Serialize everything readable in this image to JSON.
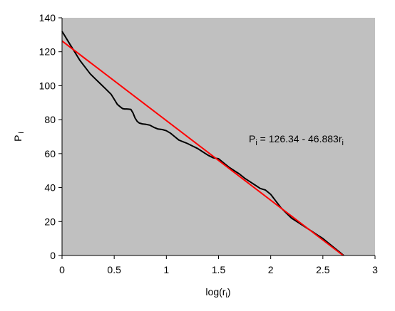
{
  "chart_data": {
    "type": "line",
    "title": "",
    "xlabel": {
      "main": "log(r",
      "sub": "i",
      "close": ")"
    },
    "ylabel": {
      "main": "P",
      "sub": "i"
    },
    "xlim": [
      0,
      3
    ],
    "ylim": [
      0,
      140
    ],
    "xticks": [
      0,
      0.5,
      1,
      1.5,
      2,
      2.5,
      3
    ],
    "xtick_labels": [
      "0",
      "0.5",
      "1",
      "1.5",
      "2",
      "2.5",
      "3"
    ],
    "yticks": [
      0,
      20,
      40,
      60,
      80,
      100,
      120,
      140
    ],
    "ytick_labels": [
      "0",
      "20",
      "40",
      "60",
      "80",
      "100",
      "120",
      "140"
    ],
    "grid": false,
    "legend": "none",
    "plot_background": "#c0c0c0",
    "series": [
      {
        "kind": "data",
        "color": "#000000",
        "x": [
          0,
          0.03,
          0.07,
          0.12,
          0.17,
          0.22,
          0.27,
          0.32,
          0.37,
          0.42,
          0.47,
          0.5,
          0.53,
          0.56,
          0.58,
          0.6,
          0.62,
          0.64,
          0.66,
          0.68,
          0.7,
          0.72,
          0.74,
          0.77,
          0.8,
          0.84,
          0.88,
          0.92,
          0.96,
          1.0,
          1.04,
          1.08,
          1.12,
          1.14,
          1.16,
          1.2,
          1.25,
          1.3,
          1.35,
          1.4,
          1.45,
          1.5,
          1.55,
          1.6,
          1.65,
          1.7,
          1.75,
          1.8,
          1.85,
          1.9,
          1.95,
          2.0,
          2.05,
          2.1,
          2.15,
          2.2,
          2.25,
          2.3,
          2.35,
          2.4,
          2.45,
          2.5,
          2.55,
          2.6,
          2.65,
          2.7
        ],
        "y": [
          132,
          129,
          125,
          120,
          115,
          111,
          107,
          104,
          101,
          98,
          95,
          92,
          89,
          87.5,
          86.5,
          86.3,
          86.3,
          86.2,
          86,
          84,
          81,
          79,
          78,
          77.5,
          77.3,
          76.8,
          75.5,
          74.5,
          74.2,
          73.5,
          72,
          70,
          68,
          67.5,
          67,
          66,
          64.5,
          63,
          61,
          59,
          57.5,
          57,
          54.5,
          52,
          50,
          48,
          45.5,
          43.5,
          41.5,
          39.5,
          38.5,
          36,
          32,
          28,
          25,
          22,
          20,
          18,
          16,
          14,
          12,
          10,
          7.5,
          5,
          2.5,
          0
        ]
      },
      {
        "kind": "fit",
        "color": "#ff0000",
        "x": [
          0,
          2.69478
        ],
        "y": [
          126.34,
          0
        ]
      }
    ],
    "annotation": {
      "p": "P",
      "sub_i": "i",
      "eq": " = 126.34 - 46.883r",
      "sub_i2": "i"
    }
  }
}
